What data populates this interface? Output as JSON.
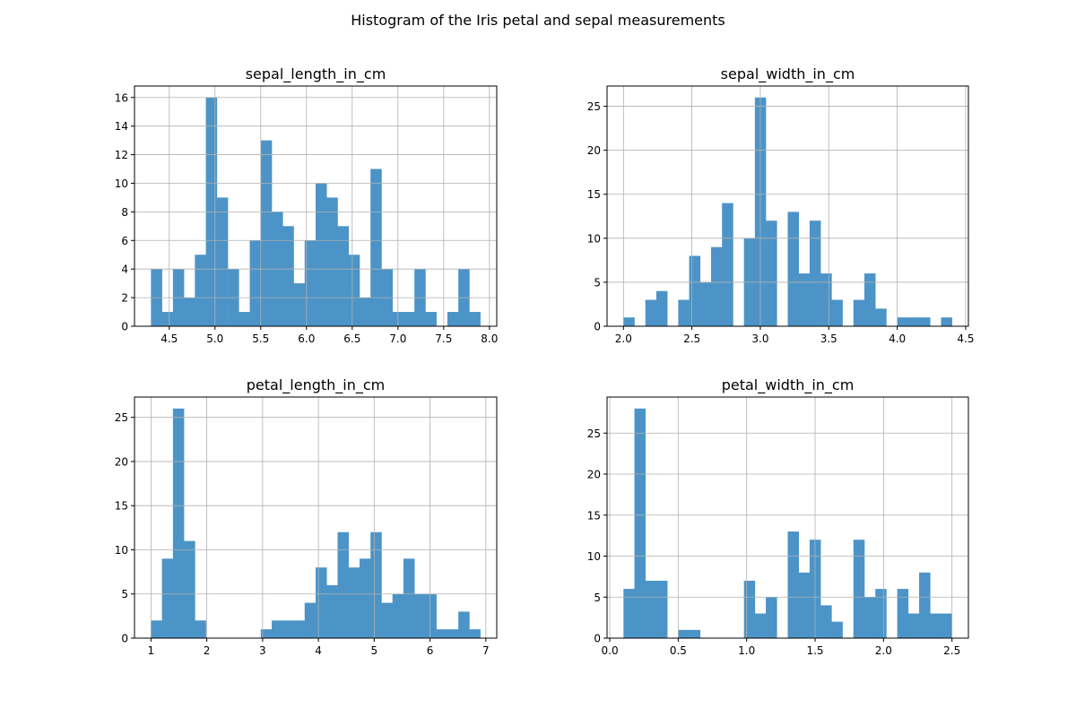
{
  "figure": {
    "title": "Histogram of the Iris petal and sepal measurements"
  },
  "colors": {
    "bar": "#4c94c7",
    "grid": "#b0b0b0",
    "axis": "#000000"
  },
  "chart_data": [
    {
      "type": "bar",
      "title": "sepal_length_in_cm",
      "xlabel": "",
      "ylabel": "",
      "grid": true,
      "bins": {
        "start": 4.3,
        "end": 7.9,
        "count": 30
      },
      "values": [
        4,
        1,
        4,
        2,
        5,
        16,
        9,
        4,
        1,
        6,
        13,
        8,
        7,
        3,
        6,
        10,
        9,
        7,
        5,
        2,
        11,
        4,
        1,
        1,
        4,
        1,
        0,
        1,
        4,
        1
      ],
      "xlim": [
        4.12,
        8.08
      ],
      "ylim": [
        0,
        16.8
      ],
      "xticks": [
        4.5,
        5.0,
        5.5,
        6.0,
        6.5,
        7.0,
        7.5,
        8.0
      ],
      "xtick_labels": [
        "4.5",
        "5.0",
        "5.5",
        "6.0",
        "6.5",
        "7.0",
        "7.5",
        "8.0"
      ],
      "yticks": [
        0,
        2,
        4,
        6,
        8,
        10,
        12,
        14,
        16
      ],
      "ytick_labels": [
        "0",
        "2",
        "4",
        "6",
        "8",
        "10",
        "12",
        "14",
        "16"
      ]
    },
    {
      "type": "bar",
      "title": "sepal_width_in_cm",
      "xlabel": "",
      "ylabel": "",
      "grid": true,
      "bins": {
        "start": 2.0,
        "end": 4.4,
        "count": 30
      },
      "values": [
        1,
        0,
        3,
        4,
        0,
        3,
        8,
        5,
        9,
        14,
        0,
        10,
        26,
        12,
        0,
        13,
        6,
        12,
        6,
        3,
        0,
        3,
        6,
        2,
        0,
        1,
        1,
        1,
        0,
        1
      ],
      "xlim": [
        1.88,
        4.52
      ],
      "ylim": [
        0,
        27.3
      ],
      "xticks": [
        2.0,
        2.5,
        3.0,
        3.5,
        4.0,
        4.5
      ],
      "xtick_labels": [
        "2.0",
        "2.5",
        "3.0",
        "3.5",
        "4.0",
        "4.5"
      ],
      "yticks": [
        0,
        5,
        10,
        15,
        20,
        25
      ],
      "ytick_labels": [
        "0",
        "5",
        "10",
        "15",
        "20",
        "25"
      ]
    },
    {
      "type": "bar",
      "title": "petal_length_in_cm",
      "xlabel": "",
      "ylabel": "",
      "grid": true,
      "bins": {
        "start": 1.0,
        "end": 6.9,
        "count": 30
      },
      "values": [
        2,
        9,
        26,
        11,
        2,
        0,
        0,
        0,
        0,
        0,
        1,
        2,
        2,
        2,
        4,
        8,
        6,
        12,
        8,
        9,
        12,
        4,
        5,
        9,
        5,
        5,
        1,
        1,
        3,
        1
      ],
      "xlim": [
        0.705,
        7.195
      ],
      "ylim": [
        0,
        27.3
      ],
      "xticks": [
        1,
        2,
        3,
        4,
        5,
        6,
        7
      ],
      "xtick_labels": [
        "1",
        "2",
        "3",
        "4",
        "5",
        "6",
        "7"
      ],
      "yticks": [
        0,
        5,
        10,
        15,
        20,
        25
      ],
      "ytick_labels": [
        "0",
        "5",
        "10",
        "15",
        "20",
        "25"
      ]
    },
    {
      "type": "bar",
      "title": "petal_width_in_cm",
      "xlabel": "",
      "ylabel": "",
      "grid": true,
      "bins": {
        "start": 0.1,
        "end": 2.5,
        "count": 30
      },
      "values": [
        6,
        28,
        7,
        7,
        0,
        1,
        1,
        0,
        0,
        0,
        0,
        7,
        3,
        5,
        0,
        13,
        8,
        12,
        4,
        2,
        0,
        12,
        5,
        6,
        0,
        6,
        3,
        8,
        3,
        3
      ],
      "xlim": [
        -0.02,
        2.62
      ],
      "ylim": [
        0,
        29.4
      ],
      "xticks": [
        0.0,
        0.5,
        1.0,
        1.5,
        2.0,
        2.5
      ],
      "xtick_labels": [
        "0.0",
        "0.5",
        "1.0",
        "1.5",
        "2.0",
        "2.5"
      ],
      "yticks": [
        0,
        5,
        10,
        15,
        20,
        25
      ],
      "ytick_labels": [
        "0",
        "5",
        "10",
        "15",
        "20",
        "25"
      ]
    }
  ]
}
